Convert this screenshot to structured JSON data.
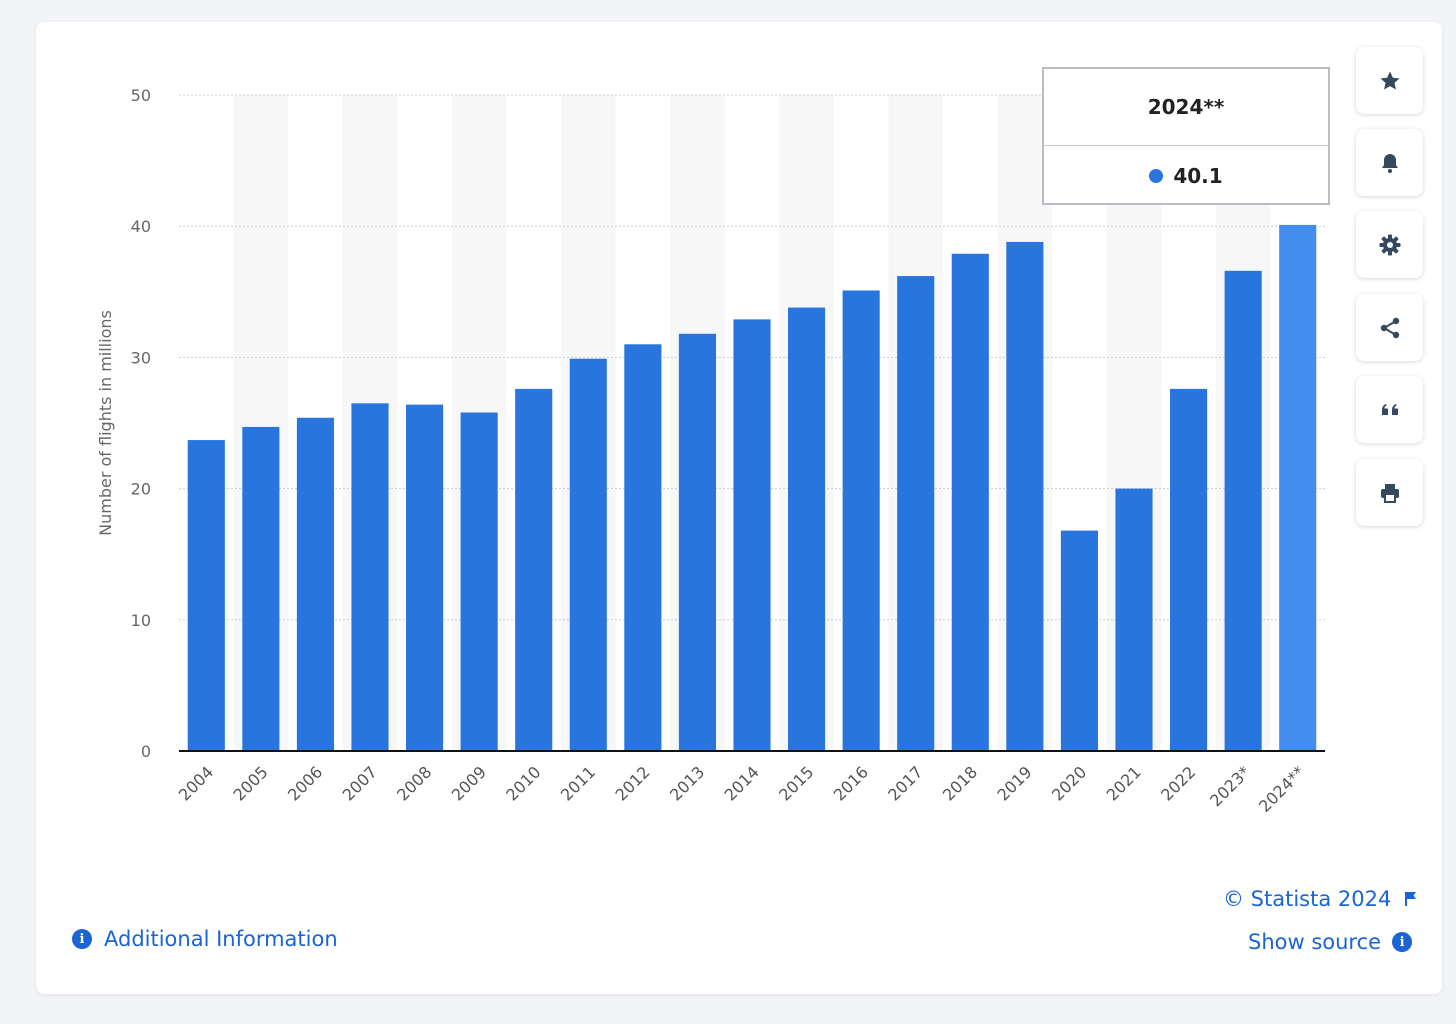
{
  "chart_data": {
    "type": "bar",
    "ylabel": "Number of flights in millions",
    "ylim": [
      0,
      50
    ],
    "yticks": [
      0,
      10,
      20,
      30,
      40,
      50
    ],
    "categories": [
      "2004",
      "2005",
      "2006",
      "2007",
      "2008",
      "2009",
      "2010",
      "2011",
      "2012",
      "2013",
      "2014",
      "2015",
      "2016",
      "2017",
      "2018",
      "2019",
      "2020",
      "2021",
      "2022",
      "2023*",
      "2024**"
    ],
    "values": [
      23.7,
      24.7,
      25.4,
      26.5,
      26.4,
      25.8,
      27.6,
      29.9,
      31.0,
      31.8,
      32.9,
      33.8,
      35.1,
      36.2,
      37.9,
      38.8,
      16.8,
      20.0,
      27.6,
      36.6,
      40.1
    ],
    "colors": {
      "bar": "#2875dd",
      "highlight": "#418ef0",
      "grid": "#c9ccd1",
      "band": "#f7f7f7"
    },
    "highlight_index": 20,
    "grid": true
  },
  "tooltip": {
    "title": "2024**",
    "value": "40.1"
  },
  "toolbar": [
    {
      "name": "favorite-button",
      "icon": "star-icon"
    },
    {
      "name": "notification-button",
      "icon": "bell-icon"
    },
    {
      "name": "settings-button",
      "icon": "gear-icon"
    },
    {
      "name": "share-button",
      "icon": "share-icon"
    },
    {
      "name": "cite-button",
      "icon": "quote-icon"
    },
    {
      "name": "print-button",
      "icon": "printer-icon"
    }
  ],
  "footer": {
    "copyright": "© Statista 2024",
    "show_source": "Show source",
    "additional_info": "Additional Information"
  }
}
